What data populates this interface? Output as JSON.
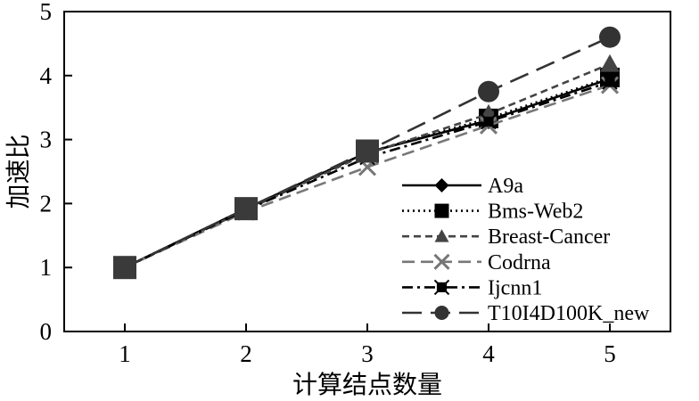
{
  "chart_data": {
    "type": "line",
    "title": "",
    "xlabel": "计算结点数量",
    "ylabel": "加速比",
    "xlim": [
      0.5,
      5.5
    ],
    "ylim": [
      0,
      5
    ],
    "x": [
      1,
      2,
      3,
      4,
      5
    ],
    "xticks": [
      "1",
      "2",
      "3",
      "4",
      "5"
    ],
    "yticks": [
      "0",
      "1",
      "2",
      "3",
      "4",
      "5"
    ],
    "grid": false,
    "legend_position": "bottom-right",
    "series": [
      {
        "name": "A9a",
        "values": [
          1.0,
          1.92,
          2.8,
          3.3,
          3.95
        ],
        "color": "#000000",
        "dash": "solid",
        "marker": "diamond"
      },
      {
        "name": "Bms-Web2",
        "values": [
          1.0,
          1.92,
          2.8,
          3.33,
          3.97
        ],
        "color": "#000000",
        "dash": "dotted",
        "marker": "square"
      },
      {
        "name": "Breast-Cancer",
        "values": [
          1.0,
          1.9,
          2.78,
          3.4,
          4.18
        ],
        "color": "#444444",
        "dash": "dashed",
        "marker": "triangle"
      },
      {
        "name": "Codrna",
        "values": [
          1.0,
          1.87,
          2.57,
          3.22,
          3.85
        ],
        "color": "#777777",
        "dash": "longdash",
        "marker": "x"
      },
      {
        "name": "Ijcnn1",
        "values": [
          1.0,
          1.9,
          2.72,
          3.28,
          3.9
        ],
        "color": "#000000",
        "dash": "dashdot",
        "marker": "star"
      },
      {
        "name": "T10I4D100K_new",
        "values": [
          1.0,
          1.92,
          2.82,
          3.75,
          4.6
        ],
        "color": "#333333",
        "dash": "bigdash",
        "marker": "circle"
      }
    ]
  }
}
